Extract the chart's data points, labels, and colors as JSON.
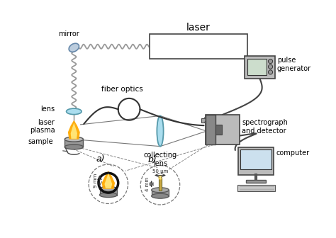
{
  "title": "laser",
  "background_color": "#ffffff",
  "text_color": "#000000",
  "labels": {
    "mirror": "mirror",
    "lens": "lens",
    "laser_plasma": "laser\nplasma",
    "sample": "sample",
    "fiber_optics": "fiber optics",
    "collecting_lens": "collecting\nlens",
    "pulse_generator": "pulse\ngenerator",
    "spectrograph": "spectrograph\nand detector",
    "computer": "computer",
    "a": "a)",
    "b": "b)",
    "dim_a": "9 mm",
    "dim_b_v": "4 mm",
    "dim_b_h": "50 μm"
  },
  "colors": {
    "flame_outer": "#ffaa00",
    "flame_inner": "#ffee88",
    "lens_color": "#aaddee",
    "box_fill": "#cccccc",
    "box_edge": "#555555",
    "wavy_line": "#999999",
    "gray_dark": "#555555",
    "gray_mid": "#aaaaaa",
    "gray_light": "#dddddd"
  }
}
